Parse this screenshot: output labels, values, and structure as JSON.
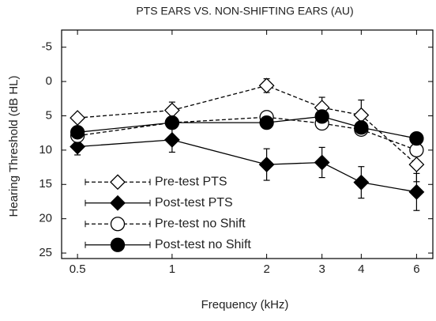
{
  "chart_data": {
    "type": "line",
    "title": "PTS EARS VS. NON-SHIFTING EARS (AU)",
    "xlabel": "Frequency (kHz)",
    "ylabel": "Hearing Threshold (dB HL)",
    "x": [
      0.5,
      1,
      2,
      3,
      4,
      6
    ],
    "xlim": [
      0.445,
      6.76
    ],
    "xticks": [
      0.5,
      1,
      2,
      3,
      4,
      6
    ],
    "xscale": "log",
    "ylim": [
      -7.5,
      25.8
    ],
    "yticks": [
      -5,
      0,
      5,
      10,
      15,
      20,
      25
    ],
    "yinverted": true,
    "legend": "lower left",
    "series": [
      {
        "name": "Pre-test PTS",
        "color": "#000000",
        "marker": "diamond",
        "filled": false,
        "dashed": true,
        "values": [
          5.3,
          4.2,
          0.6,
          3.8,
          4.9,
          12.1
        ],
        "errors": [
          0.6,
          1.2,
          1.0,
          1.5,
          2.2,
          2.5
        ]
      },
      {
        "name": "Post-test PTS",
        "color": "#000000",
        "marker": "diamond",
        "filled": true,
        "dashed": false,
        "values": [
          9.5,
          8.5,
          12.1,
          11.8,
          14.7,
          16.1
        ],
        "errors": [
          1.2,
          1.8,
          2.3,
          2.2,
          2.3,
          2.7
        ]
      },
      {
        "name": "Pre-test no Shift",
        "color": "#000000",
        "marker": "circle",
        "filled": false,
        "dashed": true,
        "values": [
          7.9,
          6.0,
          5.2,
          6.1,
          7.0,
          10.0
        ],
        "errors": [
          0.7,
          0.7,
          0.7,
          0.7,
          0.7,
          0.8
        ]
      },
      {
        "name": "Post-test no Shift",
        "color": "#000000",
        "marker": "circle",
        "filled": true,
        "dashed": false,
        "values": [
          7.4,
          6.0,
          6.0,
          5.1,
          6.7,
          8.3
        ],
        "errors": [
          0.7,
          0.7,
          0.7,
          0.7,
          0.7,
          0.8
        ]
      }
    ]
  }
}
